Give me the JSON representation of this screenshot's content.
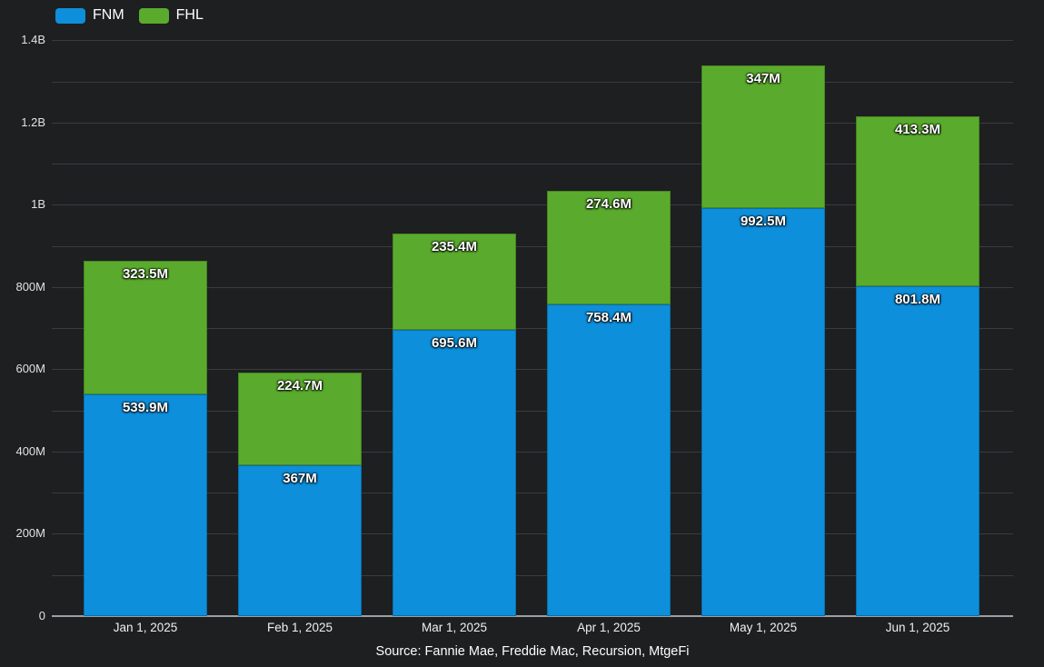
{
  "chart_data": {
    "type": "bar",
    "stacked": true,
    "orientation": "vertical",
    "title": "",
    "xlabel": "",
    "ylabel": "",
    "ylim": [
      0,
      1400
    ],
    "y_unit": "M (millions)",
    "grid": "horizontal gridlines every 100M, labels every 200M",
    "legend_position": "top-left",
    "background_color": "#1e1f21",
    "gridline_color": "#3a3b3e",
    "baseline_color": "#9aa0a6",
    "categories": [
      "Jan 1, 2025",
      "Feb 1, 2025",
      "Mar 1, 2025",
      "Apr 1, 2025",
      "May 1, 2025",
      "Jun 1, 2025"
    ],
    "series": [
      {
        "name": "FNM",
        "color": "#0d8fdb",
        "values": [
          539.9,
          367,
          695.6,
          758.4,
          992.5,
          801.8
        ],
        "labels": [
          "539.9M",
          "367M",
          "695.6M",
          "758.4M",
          "992.5M",
          "801.8M"
        ]
      },
      {
        "name": "FHL",
        "color": "#5aab2d",
        "values": [
          323.5,
          224.7,
          235.4,
          274.6,
          347,
          413.3
        ],
        "labels": [
          "323.5M",
          "224.7M",
          "235.4M",
          "274.6M",
          "347M",
          "413.3M"
        ]
      }
    ],
    "yticks": [
      {
        "value": 0,
        "label": "0"
      },
      {
        "value": 100,
        "label": ""
      },
      {
        "value": 200,
        "label": "200M"
      },
      {
        "value": 300,
        "label": ""
      },
      {
        "value": 400,
        "label": "400M"
      },
      {
        "value": 500,
        "label": ""
      },
      {
        "value": 600,
        "label": "600M"
      },
      {
        "value": 700,
        "label": ""
      },
      {
        "value": 800,
        "label": "800M"
      },
      {
        "value": 900,
        "label": ""
      },
      {
        "value": 1000,
        "label": "1B"
      },
      {
        "value": 1100,
        "label": ""
      },
      {
        "value": 1200,
        "label": "1.2B"
      },
      {
        "value": 1300,
        "label": ""
      },
      {
        "value": 1400,
        "label": "1.4B"
      }
    ],
    "source": "Source: Fannie Mae, Freddie Mac, Recursion, MtgeFi"
  }
}
